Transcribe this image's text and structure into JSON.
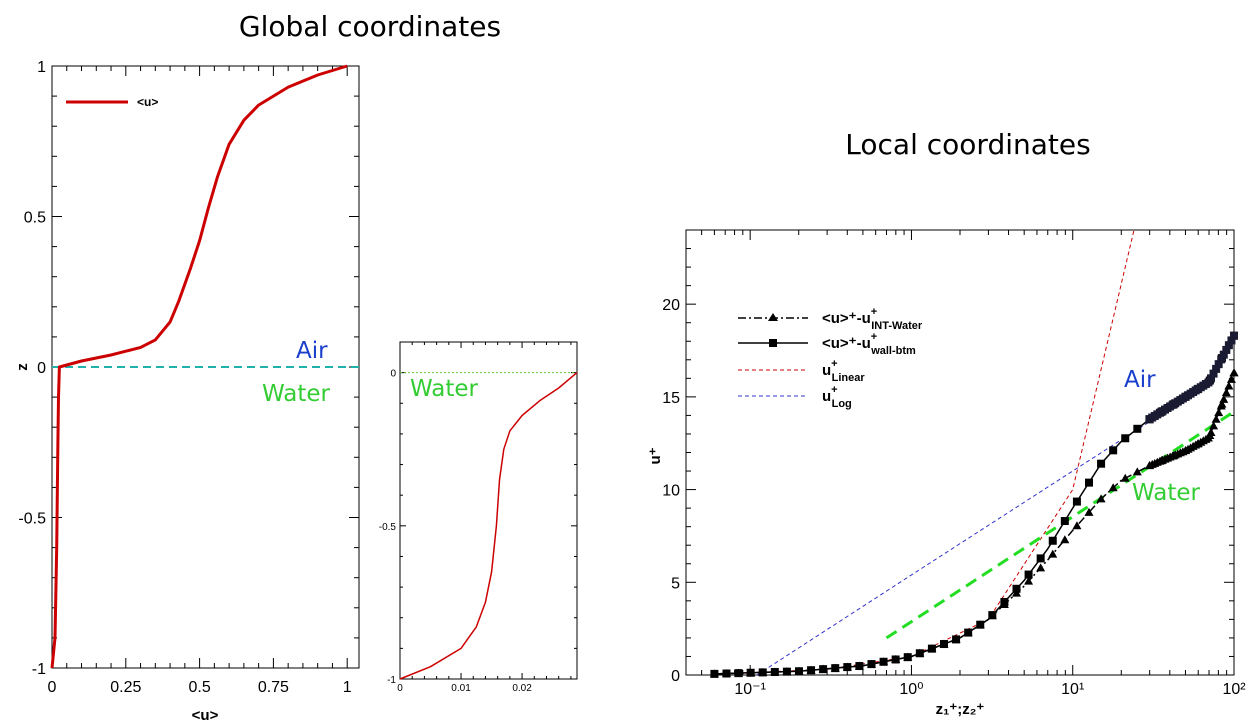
{
  "titles": {
    "global": "Global coordinates",
    "local": "Local coordinates"
  },
  "colors": {
    "profile_red": "#cc0000",
    "interface_teal": "#20b2aa",
    "interface_green": "#66cc33",
    "air_blue": "#1a3fcc",
    "water_green": "#33cc33",
    "linear_red": "#cc0000",
    "log_blue": "#3333cc",
    "fit_green": "#22dd22"
  },
  "chart_data": [
    {
      "id": "global",
      "type": "line",
      "xlabel": "<u>",
      "ylabel": "z",
      "xlim": [
        0,
        1.04
      ],
      "ylim": [
        -1,
        1
      ],
      "xticks": [
        "0",
        "0.25",
        "0.5",
        "0.75",
        "1"
      ],
      "yticks": [
        "-1",
        "-0.5",
        "0",
        "0.5",
        "1"
      ],
      "grid": false,
      "legend_position": "top-left",
      "legend": [
        "<u>"
      ],
      "annotations": {
        "air": "Air",
        "water": "Water"
      },
      "series": [
        {
          "name": "<u>",
          "x": [
            0.0,
            0.01,
            0.016,
            0.02,
            0.022,
            0.025,
            0.1,
            0.2,
            0.3,
            0.35,
            0.4,
            0.43,
            0.47,
            0.5,
            0.53,
            0.56,
            0.6,
            0.65,
            0.7,
            0.8,
            0.9,
            1.0
          ],
          "y": [
            -1.0,
            -0.9,
            -0.6,
            -0.25,
            -0.1,
            0.0,
            0.02,
            0.04,
            0.065,
            0.09,
            0.15,
            0.22,
            0.33,
            0.42,
            0.53,
            0.63,
            0.74,
            0.82,
            0.87,
            0.93,
            0.97,
            1.0
          ]
        }
      ],
      "interface": {
        "y": 0,
        "style": "dashed"
      }
    },
    {
      "id": "inset",
      "type": "line",
      "xlim": [
        0,
        0.029
      ],
      "ylim": [
        -1,
        0.1
      ],
      "xticks": [
        "0",
        "0.01",
        "0.02"
      ],
      "yticks": [
        "-1",
        "-0.5",
        "0"
      ],
      "grid": false,
      "annotations": {
        "water": "Water"
      },
      "series": [
        {
          "x": [
            0.0,
            0.005,
            0.01,
            0.0125,
            0.014,
            0.015,
            0.0158,
            0.0163,
            0.017,
            0.018,
            0.02,
            0.023,
            0.026,
            0.029
          ],
          "y": [
            -1.0,
            -0.96,
            -0.9,
            -0.83,
            -0.75,
            -0.65,
            -0.5,
            -0.35,
            -0.25,
            -0.19,
            -0.14,
            -0.09,
            -0.05,
            0.0
          ]
        }
      ],
      "interface": {
        "y": 0,
        "style": "dotted"
      }
    },
    {
      "id": "local",
      "type": "line",
      "xlabel": "z₁⁺;z₂⁺",
      "ylabel": "u⁺",
      "xscale": "log",
      "xlim": [
        0.04,
        100
      ],
      "ylim": [
        0,
        24
      ],
      "xticks": [
        "10⁻¹",
        "10⁰",
        "10¹",
        "10²"
      ],
      "yticks": [
        "0",
        "5",
        "10",
        "15",
        "20"
      ],
      "grid": false,
      "legend_position": "top-left",
      "legend": [
        {
          "main": "<u>⁺-u",
          "sup": "+",
          "sub": "INT-Water"
        },
        {
          "main": "<u>⁺-u",
          "sup": "+",
          "sub": "wall-btm"
        },
        {
          "main": "u",
          "sup": "+",
          "sub": "Linear"
        },
        {
          "main": "u",
          "sup": "+",
          "sub": "Log"
        }
      ],
      "annotations": {
        "air": "Air",
        "water": "Water"
      },
      "series": [
        {
          "name": "<u>⁺-u⁺INT-Water",
          "style": "dash-dot-triangle",
          "x": [
            0.06,
            0.2,
            0.5,
            1.0,
            2.0,
            3.0,
            5.0,
            7.0,
            10.0,
            15.0,
            20.0,
            30.0,
            50.0,
            70.0,
            100.0
          ],
          "y": [
            0.06,
            0.2,
            0.5,
            1.0,
            2.0,
            3.0,
            4.8,
            6.2,
            7.8,
            9.5,
            10.5,
            11.3,
            12.1,
            12.8,
            16.3
          ]
        },
        {
          "name": "<u>⁺-u⁺wall-btm",
          "style": "solid-square",
          "x": [
            0.06,
            0.2,
            0.5,
            1.0,
            2.0,
            3.0,
            5.0,
            7.0,
            10.0,
            15.0,
            20.0,
            30.0,
            50.0,
            70.0,
            100.0
          ],
          "y": [
            0.06,
            0.2,
            0.5,
            1.0,
            2.0,
            3.0,
            5.1,
            6.8,
            9.0,
            11.4,
            12.6,
            13.8,
            15.0,
            15.8,
            18.3
          ]
        },
        {
          "name": "u⁺Linear",
          "style": "dashed-red",
          "x": [
            0.06,
            0.3,
            1.0,
            3.0,
            10.0,
            24.0
          ],
          "y": [
            0.06,
            0.3,
            1.0,
            3.0,
            10.0,
            24.0
          ]
        },
        {
          "name": "u⁺Log",
          "style": "dashed-blue",
          "x": [
            0.11,
            1.0,
            10.0,
            50.0
          ],
          "y": [
            0.0,
            5.4,
            11.0,
            14.9
          ]
        },
        {
          "style": "thick-dashed-green",
          "x": [
            0.7,
            100.0
          ],
          "y": [
            2.0,
            14.2
          ]
        }
      ]
    }
  ]
}
